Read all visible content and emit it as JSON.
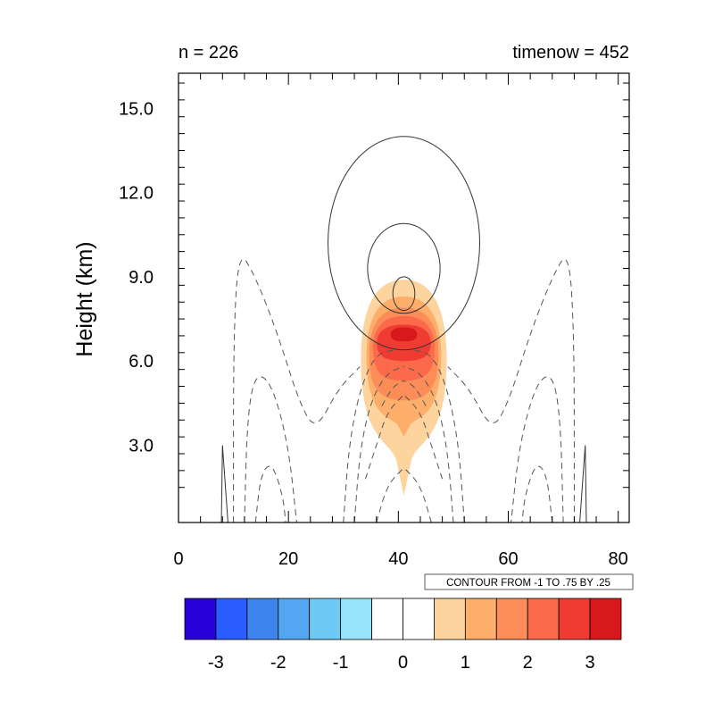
{
  "chart_data": {
    "type": "contour",
    "title_left": "n = 226",
    "title_right": "timenow = 452",
    "ylabel": "Height (km)",
    "xlabel": "",
    "xlim": [
      0,
      82
    ],
    "ylim": [
      0.25,
      16.25
    ],
    "x_ticks": [
      0,
      20,
      40,
      60,
      80
    ],
    "x_tick_labels": [
      "0",
      "20",
      "40",
      "60",
      "80"
    ],
    "y_ticks": [
      3.0,
      6.0,
      9.0,
      12.0,
      15.0
    ],
    "y_tick_labels": [
      "3.0",
      "6.0",
      "9.0",
      "12.0",
      "15.0"
    ],
    "contour_info": "CONTOUR FROM -1 TO .75 BY .25",
    "filled_field": {
      "max_value": 3.2,
      "center_x": 41,
      "center_y": 7.0,
      "levels": [
        {
          "value": 0.5,
          "color": "#fdd49e",
          "rx": 7.8,
          "y_top": 8.9,
          "y_bottom": 3.2,
          "y_tip": 1.2
        },
        {
          "value": 1.0,
          "color": "#fdae6b",
          "rx": 6.8,
          "y_top": 8.3,
          "y_bottom": 4.0,
          "y_tip": 3.3
        },
        {
          "value": 1.5,
          "color": "#fc8d59",
          "rx": 6.3,
          "y_top": 7.9,
          "y_bottom": 4.6
        },
        {
          "value": 2.0,
          "color": "#fb6a4a",
          "rx": 5.6,
          "y_top": 7.6,
          "y_bottom": 5.3
        },
        {
          "value": 2.5,
          "color": "#f03b32",
          "rx": 4.9,
          "y_top": 7.3,
          "y_bottom": 6.0
        },
        {
          "value": 3.0,
          "color": "#d7191c",
          "rx": 2.4,
          "y_top": 7.2,
          "y_bottom": 6.7
        }
      ]
    },
    "positive_contours": [
      {
        "center_x": 41,
        "center_y": 10.2,
        "rx": 13.8,
        "ry": 3.8
      },
      {
        "center_x": 41,
        "center_y": 9.3,
        "rx": 6.6,
        "ry": 1.6
      },
      {
        "center_x": 41,
        "center_y": 8.4,
        "rx": 2.0,
        "ry": 0.6
      }
    ],
    "colorbar": {
      "colors": [
        "#2800d8",
        "#2b5cff",
        "#3f84ee",
        "#53a6f2",
        "#6fc9f5",
        "#98e5fb",
        "#ffffff",
        "#ffffff",
        "#fdd49e",
        "#fdae6b",
        "#fc8d59",
        "#fb6a4a",
        "#f03b32",
        "#d7191c"
      ],
      "labels": [
        "-3",
        "-2",
        "-1",
        "0",
        "1",
        "2",
        "3"
      ]
    }
  }
}
